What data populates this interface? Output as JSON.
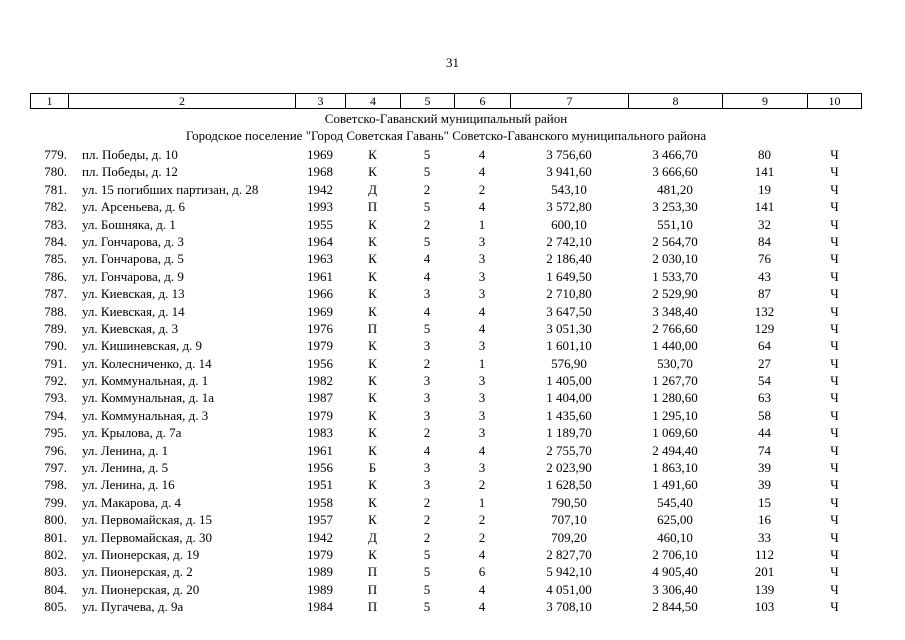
{
  "page": {
    "number": "31"
  },
  "table": {
    "column_numbers": [
      "1",
      "2",
      "3",
      "4",
      "5",
      "6",
      "7",
      "8",
      "9",
      "10"
    ],
    "section_header_1": "Советско-Гаванский муниципальный район",
    "section_header_2": "Городское поселение \"Город Советская Гавань\" Советско-Гаванского муниципального района",
    "rows": [
      {
        "num": "779.",
        "address": "пл. Победы, д. 10",
        "year": "1969",
        "material": "К",
        "floors": "5",
        "entrances": "4",
        "total_area": "3 756,60",
        "living_area": "3 466,70",
        "residents": "80",
        "mark": "Ч"
      },
      {
        "num": "780.",
        "address": "пл. Победы, д. 12",
        "year": "1968",
        "material": "К",
        "floors": "5",
        "entrances": "4",
        "total_area": "3 941,60",
        "living_area": "3 666,60",
        "residents": "141",
        "mark": "Ч"
      },
      {
        "num": "781.",
        "address": "ул. 15 погибших партизан, д. 28",
        "year": "1942",
        "material": "Д",
        "floors": "2",
        "entrances": "2",
        "total_area": "543,10",
        "living_area": "481,20",
        "residents": "19",
        "mark": "Ч"
      },
      {
        "num": "782.",
        "address": "ул. Арсеньева, д. 6",
        "year": "1993",
        "material": "П",
        "floors": "5",
        "entrances": "4",
        "total_area": "3 572,80",
        "living_area": "3 253,30",
        "residents": "141",
        "mark": "Ч"
      },
      {
        "num": "783.",
        "address": "ул. Бошняка, д. 1",
        "year": "1955",
        "material": "К",
        "floors": "2",
        "entrances": "1",
        "total_area": "600,10",
        "living_area": "551,10",
        "residents": "32",
        "mark": "Ч"
      },
      {
        "num": "784.",
        "address": "ул. Гончарова, д. 3",
        "year": "1964",
        "material": "К",
        "floors": "5",
        "entrances": "3",
        "total_area": "2 742,10",
        "living_area": "2 564,70",
        "residents": "84",
        "mark": "Ч"
      },
      {
        "num": "785.",
        "address": "ул. Гончарова, д. 5",
        "year": "1963",
        "material": "К",
        "floors": "4",
        "entrances": "3",
        "total_area": "2 186,40",
        "living_area": "2 030,10",
        "residents": "76",
        "mark": "Ч"
      },
      {
        "num": "786.",
        "address": "ул. Гончарова, д. 9",
        "year": "1961",
        "material": "К",
        "floors": "4",
        "entrances": "3",
        "total_area": "1 649,50",
        "living_area": "1 533,70",
        "residents": "43",
        "mark": "Ч"
      },
      {
        "num": "787.",
        "address": "ул. Киевская, д. 13",
        "year": "1966",
        "material": "К",
        "floors": "3",
        "entrances": "3",
        "total_area": "2 710,80",
        "living_area": "2 529,90",
        "residents": "87",
        "mark": "Ч"
      },
      {
        "num": "788.",
        "address": "ул. Киевская, д. 14",
        "year": "1969",
        "material": "К",
        "floors": "4",
        "entrances": "4",
        "total_area": "3 647,50",
        "living_area": "3 348,40",
        "residents": "132",
        "mark": "Ч"
      },
      {
        "num": "789.",
        "address": "ул. Киевская, д. 3",
        "year": "1976",
        "material": "П",
        "floors": "5",
        "entrances": "4",
        "total_area": "3 051,30",
        "living_area": "2 766,60",
        "residents": "129",
        "mark": "Ч"
      },
      {
        "num": "790.",
        "address": "ул. Кишиневская, д. 9",
        "year": "1979",
        "material": "К",
        "floors": "3",
        "entrances": "3",
        "total_area": "1 601,10",
        "living_area": "1 440,00",
        "residents": "64",
        "mark": "Ч"
      },
      {
        "num": "791.",
        "address": "ул. Колесниченко, д. 14",
        "year": "1956",
        "material": "К",
        "floors": "2",
        "entrances": "1",
        "total_area": "576,90",
        "living_area": "530,70",
        "residents": "27",
        "mark": "Ч"
      },
      {
        "num": "792.",
        "address": "ул. Коммунальная, д. 1",
        "year": "1982",
        "material": "К",
        "floors": "3",
        "entrances": "3",
        "total_area": "1 405,00",
        "living_area": "1 267,70",
        "residents": "54",
        "mark": "Ч"
      },
      {
        "num": "793.",
        "address": "ул. Коммунальная, д. 1а",
        "year": "1987",
        "material": "К",
        "floors": "3",
        "entrances": "3",
        "total_area": "1 404,00",
        "living_area": "1 280,60",
        "residents": "63",
        "mark": "Ч"
      },
      {
        "num": "794.",
        "address": "ул. Коммунальная, д. 3",
        "year": "1979",
        "material": "К",
        "floors": "3",
        "entrances": "3",
        "total_area": "1 435,60",
        "living_area": "1 295,10",
        "residents": "58",
        "mark": "Ч"
      },
      {
        "num": "795.",
        "address": "ул. Крылова, д. 7а",
        "year": "1983",
        "material": "К",
        "floors": "2",
        "entrances": "3",
        "total_area": "1 189,70",
        "living_area": "1 069,60",
        "residents": "44",
        "mark": "Ч"
      },
      {
        "num": "796.",
        "address": "ул. Ленина, д. 1",
        "year": "1961",
        "material": "К",
        "floors": "4",
        "entrances": "4",
        "total_area": "2 755,70",
        "living_area": "2 494,40",
        "residents": "74",
        "mark": "Ч"
      },
      {
        "num": "797.",
        "address": "ул. Ленина, д. 5",
        "year": "1956",
        "material": "Б",
        "floors": "3",
        "entrances": "3",
        "total_area": "2 023,90",
        "living_area": "1 863,10",
        "residents": "39",
        "mark": "Ч"
      },
      {
        "num": "798.",
        "address": "ул. Ленина, д. 16",
        "year": "1951",
        "material": "К",
        "floors": "3",
        "entrances": "2",
        "total_area": "1 628,50",
        "living_area": "1 491,60",
        "residents": "39",
        "mark": "Ч"
      },
      {
        "num": "799.",
        "address": "ул. Макарова, д. 4",
        "year": "1958",
        "material": "К",
        "floors": "2",
        "entrances": "1",
        "total_area": "790,50",
        "living_area": "545,40",
        "residents": "15",
        "mark": "Ч"
      },
      {
        "num": "800.",
        "address": "ул. Первомайская, д. 15",
        "year": "1957",
        "material": "К",
        "floors": "2",
        "entrances": "2",
        "total_area": "707,10",
        "living_area": "625,00",
        "residents": "16",
        "mark": "Ч"
      },
      {
        "num": "801.",
        "address": "ул. Первомайская, д. 30",
        "year": "1942",
        "material": "Д",
        "floors": "2",
        "entrances": "2",
        "total_area": "709,20",
        "living_area": "460,10",
        "residents": "33",
        "mark": "Ч"
      },
      {
        "num": "802.",
        "address": "ул. Пионерская, д. 19",
        "year": "1979",
        "material": "К",
        "floors": "5",
        "entrances": "4",
        "total_area": "2 827,70",
        "living_area": "2 706,10",
        "residents": "112",
        "mark": "Ч"
      },
      {
        "num": "803.",
        "address": "ул. Пионерская, д. 2",
        "year": "1989",
        "material": "П",
        "floors": "5",
        "entrances": "6",
        "total_area": "5 942,10",
        "living_area": "4 905,40",
        "residents": "201",
        "mark": "Ч"
      },
      {
        "num": "804.",
        "address": "ул. Пионерская, д. 20",
        "year": "1989",
        "material": "П",
        "floors": "5",
        "entrances": "4",
        "total_area": "4 051,00",
        "living_area": "3 306,40",
        "residents": "139",
        "mark": "Ч"
      },
      {
        "num": "805.",
        "address": "ул. Пугачева, д. 9а",
        "year": "1984",
        "material": "П",
        "floors": "5",
        "entrances": "4",
        "total_area": "3 708,10",
        "living_area": "2 844,50",
        "residents": "103",
        "mark": "Ч"
      }
    ]
  }
}
